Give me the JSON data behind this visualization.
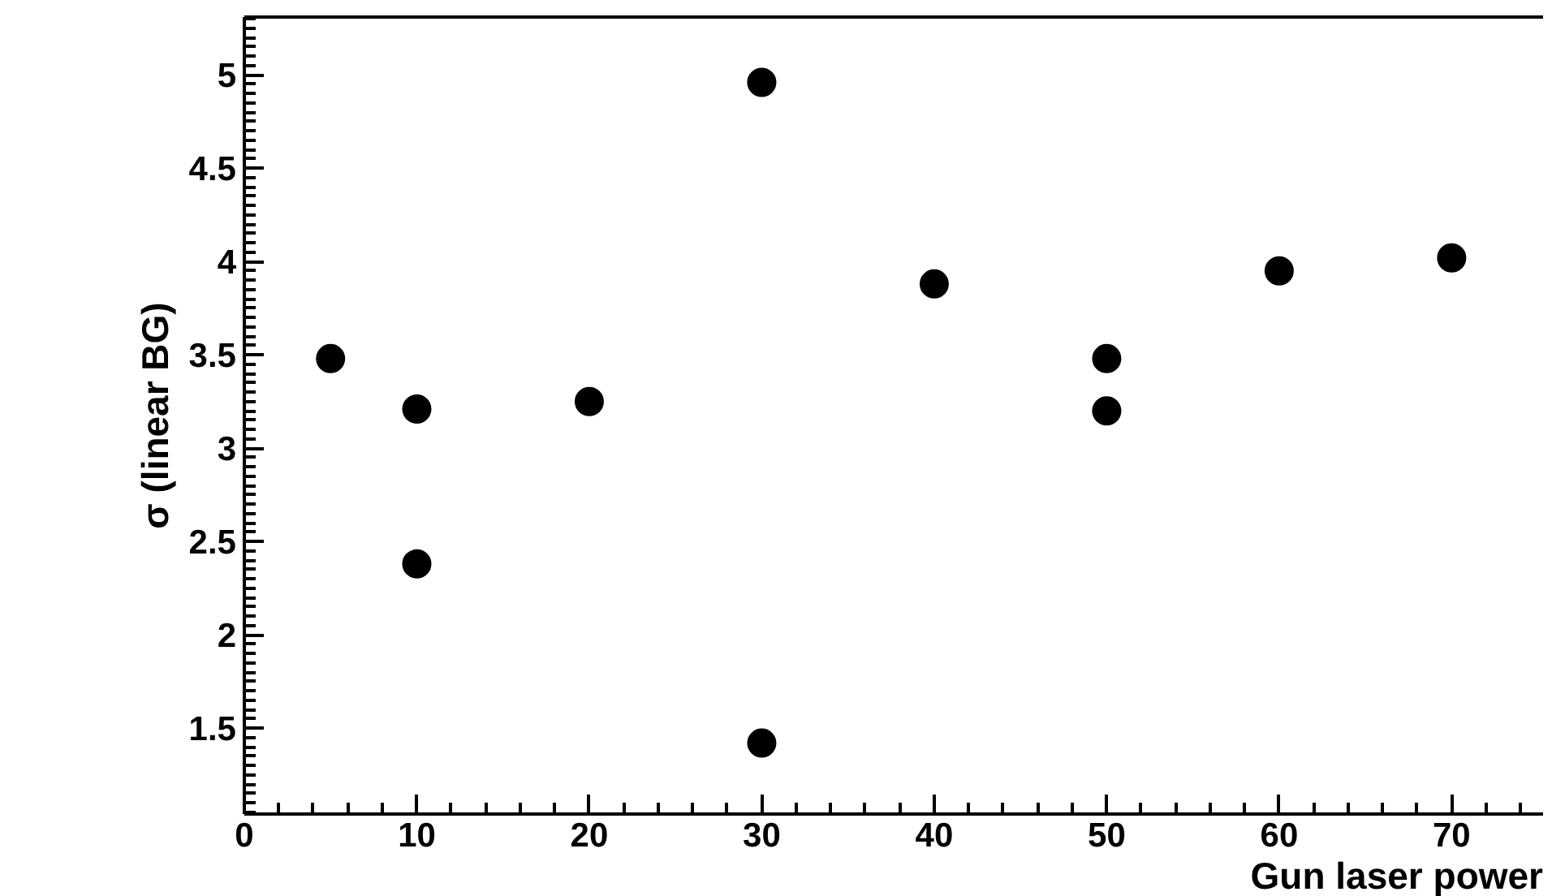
{
  "chart_data": {
    "type": "scatter",
    "xlabel": "Gun laser power",
    "ylabel": "σ (linear BG)",
    "x": [
      5,
      10,
      10,
      20,
      30,
      30,
      40,
      50,
      50,
      60,
      70
    ],
    "values": [
      3.48,
      3.21,
      2.38,
      3.25,
      4.96,
      1.42,
      3.88,
      3.48,
      3.2,
      3.95,
      4.02
    ],
    "color": "#000000",
    "marker": "circle",
    "grid": false,
    "xlim": [
      0,
      75.3
    ],
    "xticks": [
      0,
      10,
      20,
      30,
      40,
      50,
      60,
      70
    ],
    "ylim": [
      1.04,
      5.31
    ],
    "yticks": [
      1.5,
      2,
      2.5,
      3,
      3.5,
      4,
      4.5,
      5
    ]
  }
}
